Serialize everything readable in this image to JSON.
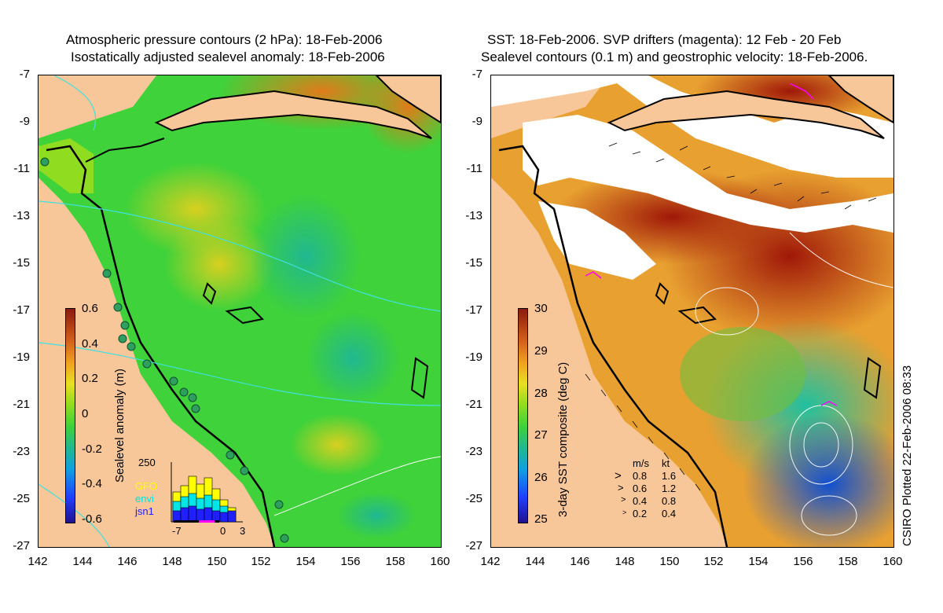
{
  "left_panel": {
    "title_line1": "Atmospheric pressure contours (2 hPa): 18-Feb-2006",
    "title_line2": "Isostatically adjusted sealevel anomaly: 18-Feb-2006",
    "colorbar_label": "Sealevel anomaly (m)",
    "colorbar_ticks": [
      "0.6",
      "0.4",
      "0.2",
      "0",
      "-0.2",
      "-0.4",
      "-0.6"
    ],
    "histogram": {
      "top_label": "250",
      "legend": [
        {
          "name": "GFO",
          "color": "#ffff00"
        },
        {
          "name": "envi",
          "color": "#00e5e5"
        },
        {
          "name": "jsn1",
          "color": "#2020ff"
        }
      ],
      "x_ticks": [
        "-7",
        "0",
        "3"
      ]
    }
  },
  "right_panel": {
    "title_line1": "SST: 18-Feb-2006. SVP drifters (magenta): 12 Feb - 20 Feb",
    "title_line2": "Sealevel contours (0.1 m) and geostrophic velocity: 18-Feb-2006.",
    "colorbar_label": "3-day SST composite (deg C)",
    "colorbar_ticks": [
      "30",
      "29",
      "28",
      "27",
      "26",
      "25"
    ],
    "velocity_legend": {
      "header_ms": "m/s",
      "header_kt": "kt",
      "rows": [
        {
          "ms": "0.8",
          "kt": "1.6"
        },
        {
          "ms": "0.6",
          "kt": "1.2"
        },
        {
          "ms": "0.4",
          "kt": "0.8"
        },
        {
          "ms": "0.2",
          "kt": "0.4"
        }
      ]
    },
    "credit": "CSIRO Plotted 22-Feb-2006 08:33"
  },
  "axes": {
    "lat_ticks": [
      "-7",
      "-9",
      "-11",
      "-13",
      "-15",
      "-17",
      "-19",
      "-21",
      "-23",
      "-25",
      "-27"
    ],
    "lon_ticks": [
      "142",
      "144",
      "146",
      "148",
      "150",
      "152",
      "154",
      "156",
      "158",
      "160"
    ]
  },
  "colors": {
    "land": "#f7c79a",
    "coast": "#000000",
    "pressure_contour": "#40e0e0",
    "station": "#2f9f5f"
  }
}
